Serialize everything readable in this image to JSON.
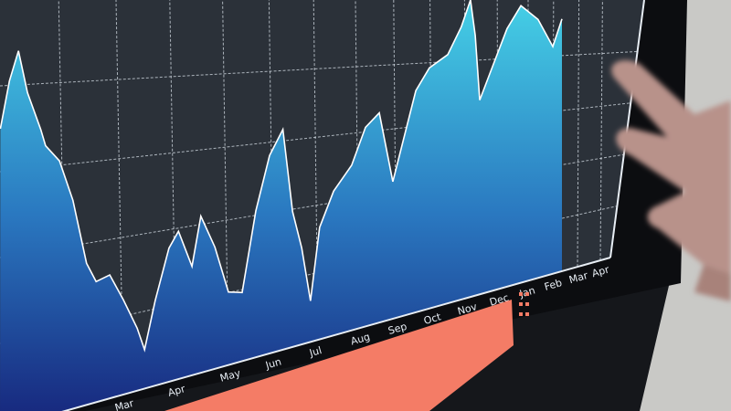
{
  "chart_data": {
    "type": "area",
    "title": "",
    "xlabel": "",
    "ylabel": "",
    "x_tick_labels": [
      "Mar",
      "Apr",
      "May",
      "Jun",
      "Jul",
      "Aug",
      "Sep",
      "Oct",
      "Nov",
      "Dec",
      "Jan",
      "Feb",
      "Mar",
      "Apr"
    ],
    "grid": true,
    "legend": "none",
    "series": [
      {
        "x_month_index": [
          -2.1,
          -1.95,
          -1.8,
          -1.65,
          -1.43,
          -1.35,
          -1.12,
          -0.89,
          -0.65,
          -0.48,
          -0.24,
          0,
          0.26,
          0.4,
          0.6,
          0.86,
          1.04,
          1.3,
          1.47,
          1.74,
          2,
          2.3,
          2.6,
          2.9,
          3.2,
          3.42,
          3.63,
          3.83,
          4.04,
          4.38,
          4.82,
          5.17,
          5.54,
          5.9,
          6.15,
          6.54,
          6.92,
          7.46,
          7.86,
          8.14,
          8.29,
          8.43,
          8.86,
          9.3,
          9.76,
          10.4,
          11,
          11.37
        ],
        "level_fraction_of_axis": [
          0.7,
          0.81,
          0.88,
          0.78,
          0.69,
          0.65,
          0.61,
          0.51,
          0.35,
          0.3,
          0.31,
          0.24,
          0.16,
          0.1,
          0.22,
          0.35,
          0.39,
          0.29,
          0.42,
          0.33,
          0.2,
          0.19,
          0.41,
          0.56,
          0.63,
          0.39,
          0.28,
          0.12,
          0.33,
          0.43,
          0.5,
          0.61,
          0.65,
          0.43,
          0.54,
          0.71,
          0.78,
          0.82,
          0.91,
          1.0,
          0.88,
          0.66,
          0.78,
          0.9,
          0.98,
          0.93,
          0.83,
          0.93
        ]
      }
    ],
    "colors": {
      "area_top": "#45d0e6",
      "area_bottom": "#16237a",
      "line": "#ffffff",
      "screen": "#2b3139",
      "grid": "#d8e0e8",
      "bar": "#f47c66"
    }
  }
}
